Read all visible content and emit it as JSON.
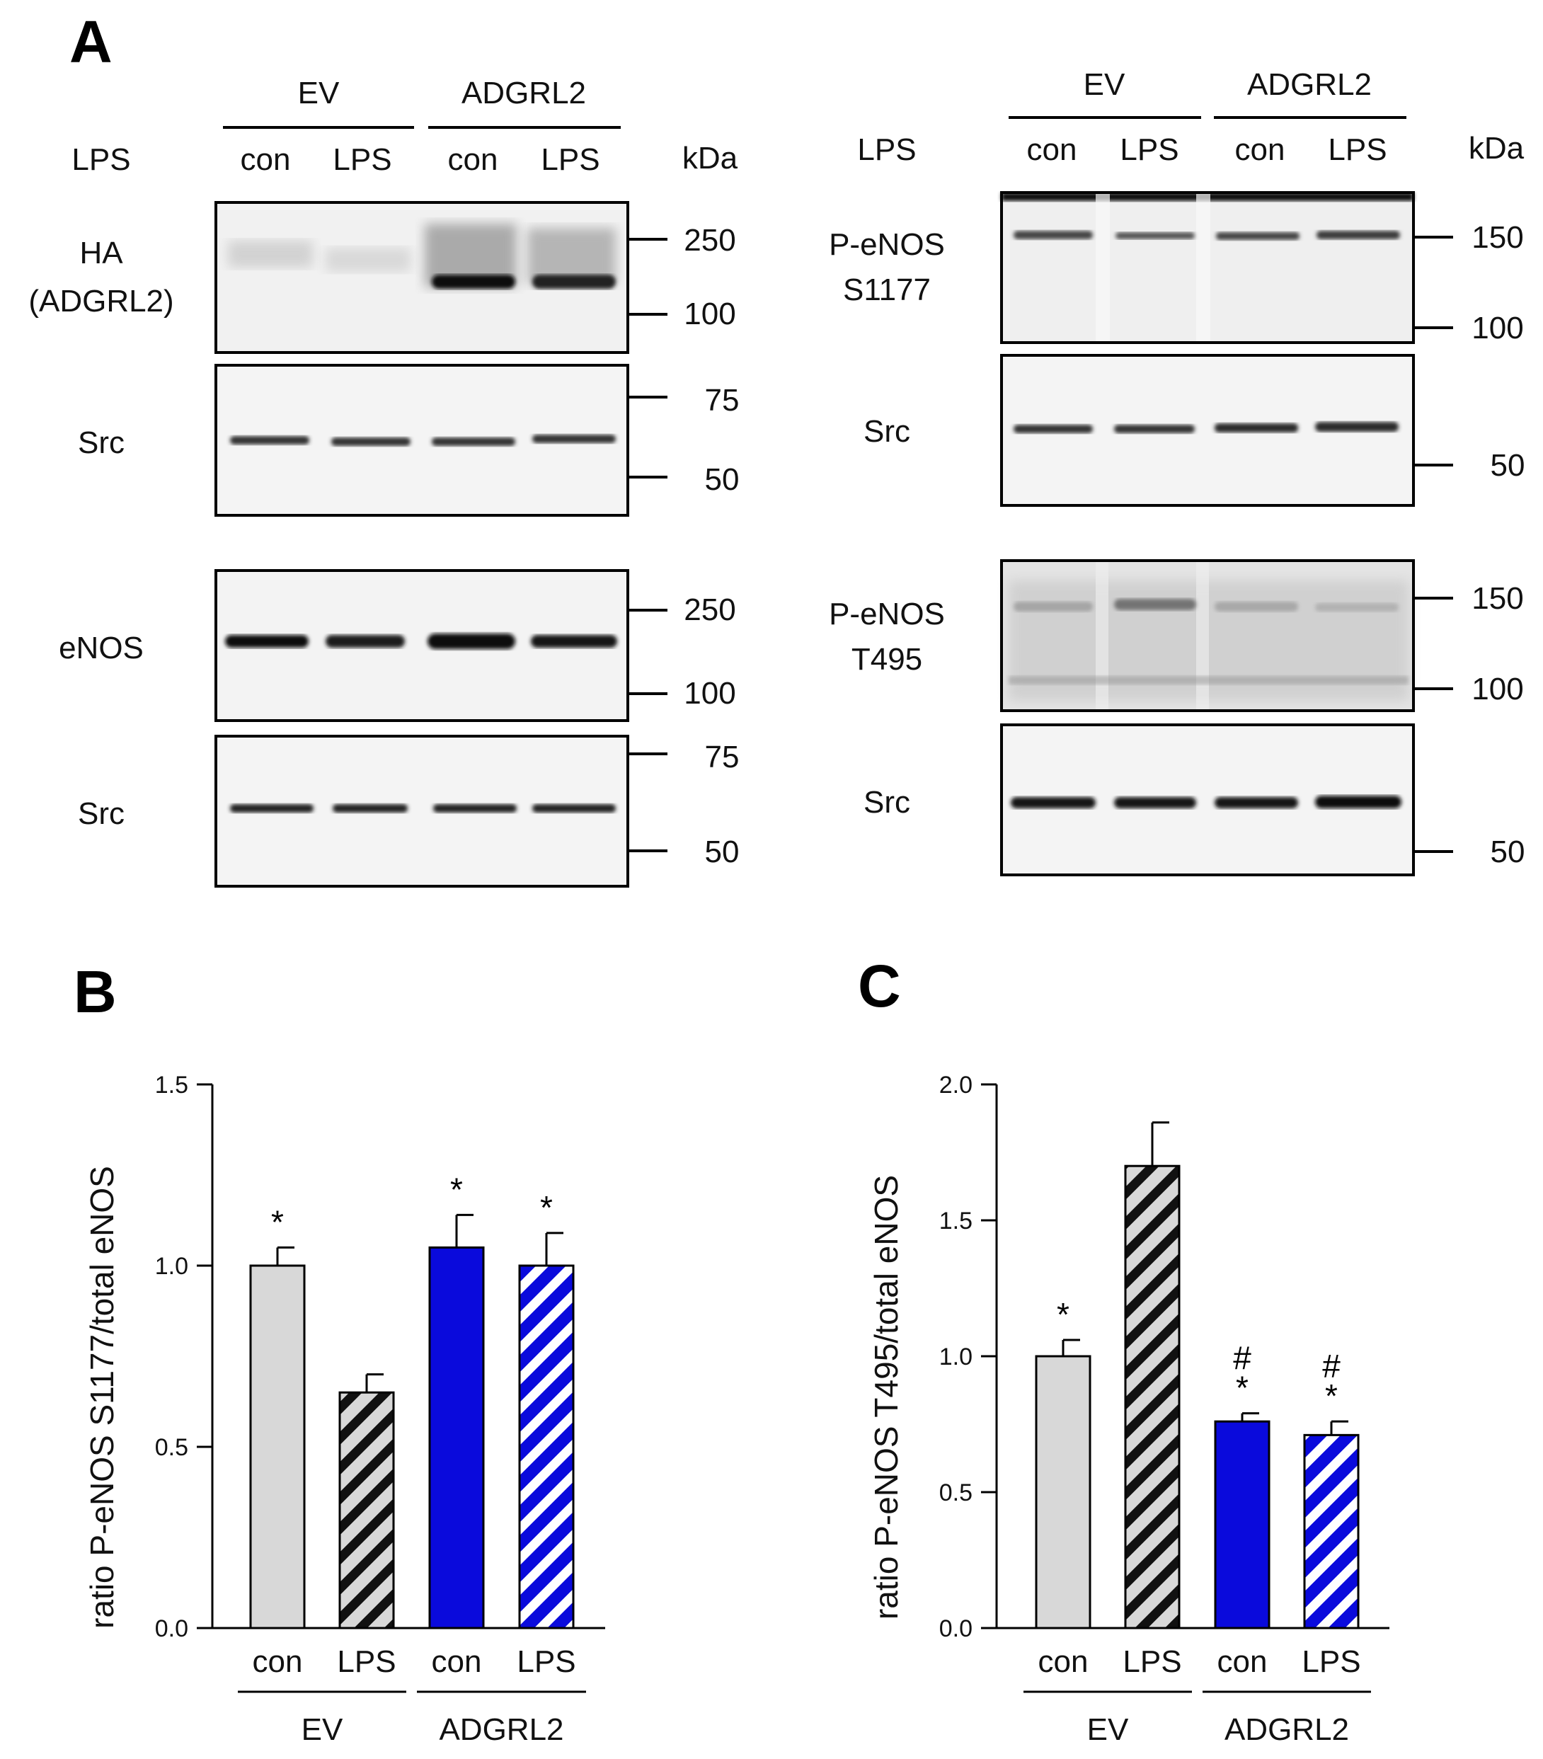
{
  "panels": {
    "a": "A",
    "b": "B",
    "c": "C"
  },
  "blots": {
    "left": {
      "groups": [
        "EV",
        "ADGRL2"
      ],
      "row_header": "LPS",
      "lanes": [
        "con",
        "LPS",
        "con",
        "LPS"
      ],
      "unit": "kDa",
      "rows": [
        {
          "label": [
            "HA",
            "(ADGRL2)"
          ],
          "markers": [
            "250",
            "100"
          ]
        },
        {
          "label": [
            "Src"
          ],
          "markers": [
            "75",
            "50"
          ]
        },
        {
          "label": [
            "eNOS"
          ],
          "markers": [
            "250",
            "100"
          ]
        },
        {
          "label": [
            "Src"
          ],
          "markers": [
            "75",
            "50"
          ]
        }
      ]
    },
    "right": {
      "groups": [
        "EV",
        "ADGRL2"
      ],
      "row_header": "LPS",
      "lanes": [
        "con",
        "LPS",
        "con",
        "LPS"
      ],
      "unit": "kDa",
      "rows": [
        {
          "label": [
            "P-eNOS",
            "S1177"
          ],
          "markers": [
            "150",
            "100"
          ]
        },
        {
          "label": [
            "Src"
          ],
          "markers": [
            "50"
          ]
        },
        {
          "label": [
            "P-eNOS",
            "T495"
          ],
          "markers": [
            "150",
            "100"
          ]
        },
        {
          "label": [
            "Src"
          ],
          "markers": [
            "50"
          ]
        }
      ]
    }
  },
  "chart_data": [
    {
      "panel": "B",
      "type": "bar",
      "ylabel": "ratio P-eNOS S1177/total eNOS",
      "ylim": [
        0,
        1.5
      ],
      "yticks": [
        "0.0",
        "0.5",
        "1.0",
        "1.5"
      ],
      "categories": [
        "con",
        "LPS",
        "con",
        "LPS"
      ],
      "groups": [
        {
          "name": "EV",
          "span": [
            0,
            1
          ]
        },
        {
          "name": "ADGRL2",
          "span": [
            2,
            3
          ]
        }
      ],
      "values": [
        1.0,
        0.65,
        1.05,
        1.0
      ],
      "errors": [
        0.05,
        0.05,
        0.09,
        0.09
      ],
      "annotations": [
        [
          "*"
        ],
        [],
        [
          "*"
        ],
        [
          "*"
        ]
      ],
      "fills": [
        {
          "color": "#d8d8d8",
          "stripe": ""
        },
        {
          "color": "#d8d8d8",
          "stripe": "#111111"
        },
        {
          "color": "#0a0adc",
          "stripe": ""
        },
        {
          "color": "#0a0adc",
          "stripe": "#ffffff"
        }
      ]
    },
    {
      "panel": "C",
      "type": "bar",
      "ylabel": "ratio P-eNOS T495/total eNOS",
      "ylim": [
        0,
        2.0
      ],
      "yticks": [
        "0.0",
        "0.5",
        "1.0",
        "1.5",
        "2.0"
      ],
      "categories": [
        "con",
        "LPS",
        "con",
        "LPS"
      ],
      "groups": [
        {
          "name": "EV",
          "span": [
            0,
            1
          ]
        },
        {
          "name": "ADGRL2",
          "span": [
            2,
            3
          ]
        }
      ],
      "values": [
        1.0,
        1.7,
        0.76,
        0.71
      ],
      "errors": [
        0.06,
        0.16,
        0.03,
        0.05
      ],
      "annotations": [
        [
          "*"
        ],
        [],
        [
          "#",
          "*"
        ],
        [
          "#",
          "*"
        ]
      ],
      "fills": [
        {
          "color": "#d8d8d8",
          "stripe": ""
        },
        {
          "color": "#d8d8d8",
          "stripe": "#111111"
        },
        {
          "color": "#0a0adc",
          "stripe": ""
        },
        {
          "color": "#0a0adc",
          "stripe": "#ffffff"
        }
      ]
    }
  ]
}
